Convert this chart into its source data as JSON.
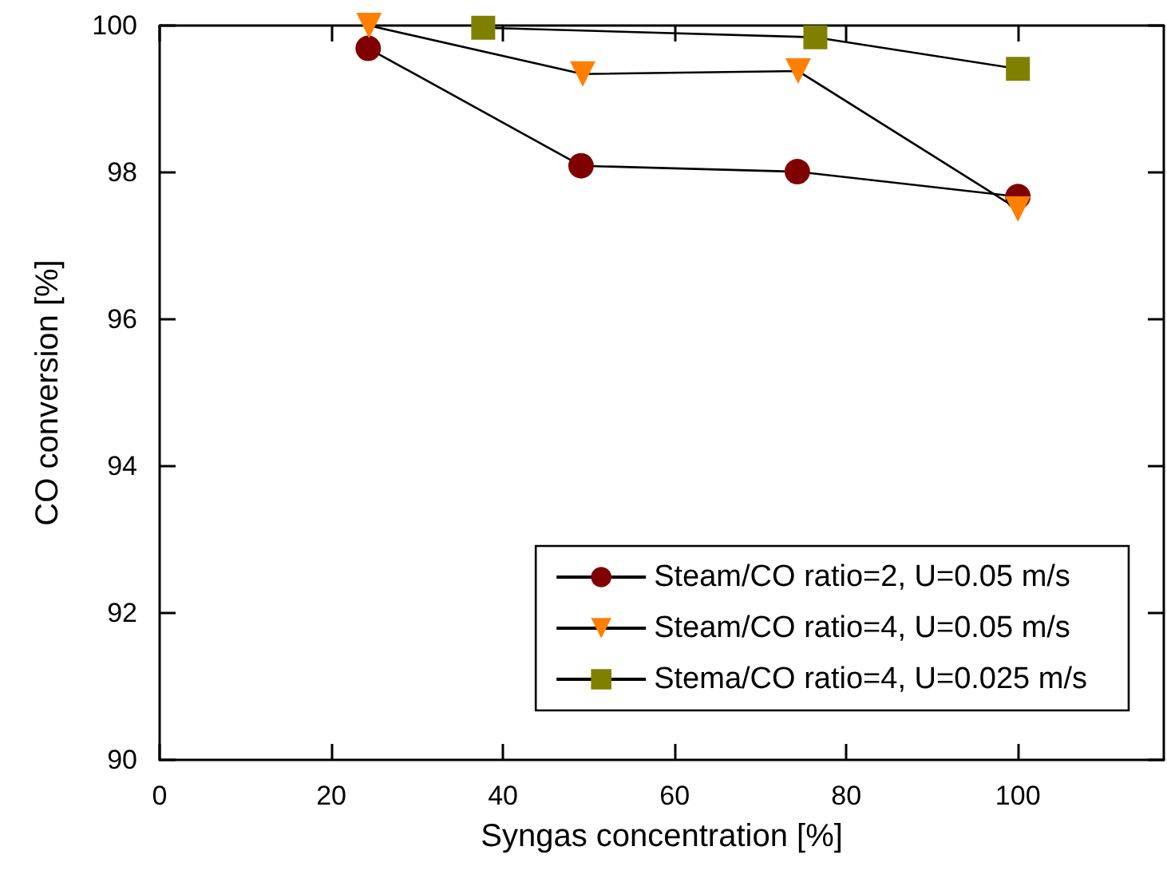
{
  "chart_data": {
    "type": "line",
    "xlabel": "Syngas concentration [%]",
    "ylabel": "CO conversion [%]",
    "xlim": [
      0,
      117
    ],
    "xticks": [
      0,
      20,
      40,
      60,
      80,
      100
    ],
    "ylim": [
      90,
      100
    ],
    "yticks": [
      90,
      92,
      94,
      96,
      98,
      100
    ],
    "grid": false,
    "legend": "bottom right",
    "line_style": "solid",
    "series": [
      {
        "name": "Steam/CO ratio=2, U=0.05 m/s",
        "color": "#800000",
        "marker": "circle",
        "x": [
          24.3,
          49.1,
          74.3,
          100
        ],
        "values": [
          99.69,
          98.09,
          98.01,
          97.67
        ]
      },
      {
        "name": "Steam/CO ratio=4, U=0.05 m/s",
        "color": "#ff8000",
        "marker": "triangle",
        "x": [
          24.4,
          49.3,
          74.4,
          100
        ],
        "values": [
          100.0,
          99.34,
          99.38,
          97.5
        ]
      },
      {
        "name": "Stema/CO ratio=4, U=0.025 m/s",
        "color": "#808000",
        "marker": "square",
        "x": [
          37.7,
          76.4,
          100
        ],
        "values": [
          99.97,
          99.84,
          99.41
        ]
      }
    ]
  }
}
